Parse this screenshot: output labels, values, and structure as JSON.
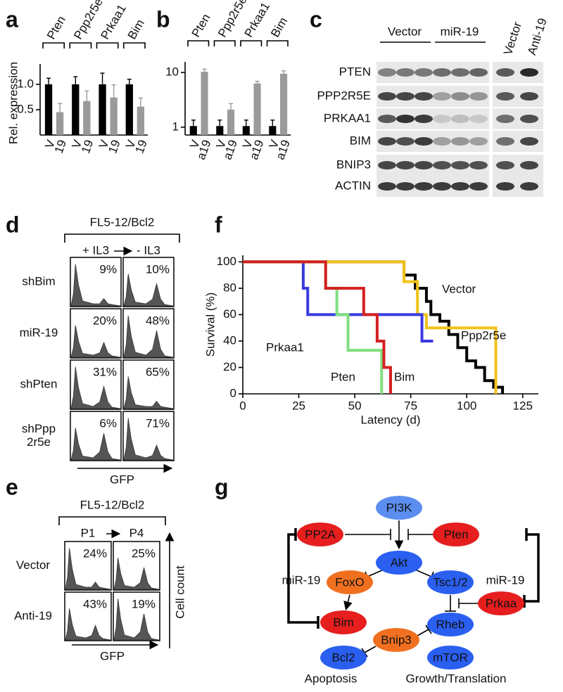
{
  "panel_labels": [
    "a",
    "b",
    "c",
    "d",
    "e",
    "f",
    "g"
  ],
  "chart_data": [
    {
      "type": "bar",
      "log": false,
      "ylabel": "Rel. expression",
      "categories": [
        "Pten",
        "Ppp2r5e",
        "Prkaa1",
        "Bim"
      ],
      "series": [
        {
          "name": "V",
          "color": "#000000",
          "values": [
            1,
            1,
            1,
            1
          ],
          "errors": [
            0.12,
            0.15,
            0.22,
            0.1
          ]
        },
        {
          "name": "19",
          "color": "#9a9a9a",
          "values": [
            0.45,
            0.67,
            0.74,
            0.56
          ],
          "errors": [
            0.17,
            0.2,
            0.25,
            0.17
          ]
        }
      ],
      "ylim": [
        0,
        1.4
      ],
      "yticks": [
        0.5,
        {
          "value": 1,
          "label": "1.0"
        }
      ]
    },
    {
      "type": "bar",
      "log": true,
      "categories": [
        "Pten",
        "Ppp2r5e",
        "Prkaa1",
        "Bim"
      ],
      "series": [
        {
          "name": "V",
          "color": "#000000",
          "values": [
            1.05,
            1.05,
            1.05,
            1.05
          ],
          "errors": [
            0.3,
            0.3,
            0.3,
            0.3
          ]
        },
        {
          "name": "a19",
          "color": "#9a9a9a",
          "values": [
            10.3,
            2.1,
            6.3,
            9.5
          ],
          "errors": [
            1.2,
            0.6,
            0.6,
            1.2
          ]
        }
      ],
      "ylim": [
        0.72,
        15.6
      ],
      "yticks": [
        1,
        10
      ]
    },
    {
      "type": "step",
      "xlabel": "Latency (d)",
      "ylabel": "Survival (%)",
      "xlim": [
        0,
        132
      ],
      "ylim": [
        0,
        105
      ],
      "xticks": [
        0,
        25,
        50,
        75,
        100,
        125
      ],
      "yticks": [
        0,
        20,
        40,
        60,
        80,
        100
      ],
      "series": [
        {
          "name": "Vector",
          "color": "#000000",
          "x": [
            0,
            72,
            77,
            82,
            84,
            88,
            92,
            96,
            100,
            104,
            108,
            112,
            116
          ],
          "values": [
            100,
            90,
            80,
            70,
            60,
            55,
            45,
            35,
            25,
            20,
            10,
            5,
            0
          ]
        },
        {
          "name": "Ppp2r5e",
          "color": "#f2c21a",
          "x": [
            0,
            72,
            78,
            82,
            113
          ],
          "values": [
            100,
            85,
            60,
            50,
            0
          ]
        },
        {
          "name": "Prkaa1",
          "color": "#3a3ae0",
          "x": [
            0,
            27,
            29,
            80,
            85
          ],
          "values": [
            100,
            80,
            60,
            40,
            40
          ]
        },
        {
          "name": "Pten",
          "color": "#7fe07f",
          "x": [
            0,
            37,
            42,
            47,
            62
          ],
          "values": [
            100,
            80,
            60,
            33,
            0
          ]
        },
        {
          "name": "Bim",
          "color": "#d42020",
          "x": [
            0,
            37,
            54,
            60,
            63,
            66
          ],
          "values": [
            100,
            80,
            60,
            40,
            20,
            0
          ]
        }
      ]
    }
  ],
  "blot": {
    "groups": [
      "Vector",
      "miR-19"
    ],
    "right_groups": [
      "Vector",
      "Anti-19"
    ],
    "rows": [
      "PTEN",
      "PPP2R5E",
      "PRKAA1",
      "BIM",
      "BNIP3",
      "ACTIN"
    ]
  },
  "flow_d": {
    "title": "FL5-12/Bcl2",
    "conditions": [
      "+ IL3",
      "- IL3"
    ],
    "axis": "GFP",
    "rows": [
      {
        "label": "shBim",
        "values": [
          "9%",
          "10%"
        ]
      },
      {
        "label": "miR-19",
        "values": [
          "20%",
          "48%"
        ]
      },
      {
        "label": "shPten",
        "values": [
          "31%",
          "65%"
        ]
      },
      {
        "label": "shPpp\n2r5e",
        "values": [
          "6%",
          "71%"
        ]
      }
    ]
  },
  "flow_e": {
    "title": "FL5-12/Bcl2",
    "conditions": [
      "P1",
      "P4"
    ],
    "axis": "GFP",
    "y_axis": "Cell count",
    "rows": [
      {
        "label": "Vector",
        "values": [
          "24%",
          "25%"
        ]
      },
      {
        "label": "Anti-19",
        "values": [
          "43%",
          "19%"
        ]
      }
    ]
  },
  "diagram": {
    "nodes": [
      {
        "label": "PI3K",
        "color": "#5b8ef0"
      },
      {
        "label": "PP2A",
        "color": "#e61e1e"
      },
      {
        "label": "Pten",
        "color": "#e61e1e"
      },
      {
        "label": "Akt",
        "color": "#2a5ff0"
      },
      {
        "label": "FoxO",
        "color": "#f07020"
      },
      {
        "label": "Tsc1/2",
        "color": "#2a5ff0"
      },
      {
        "label": "Prkaa",
        "color": "#e61e1e"
      },
      {
        "label": "Bim",
        "color": "#e61e1e"
      },
      {
        "label": "Rheb",
        "color": "#2a5ff0"
      },
      {
        "label": "Bnip3",
        "color": "#f07020"
      },
      {
        "label": "Bcl2",
        "color": "#2a5ff0"
      },
      {
        "label": "mTOR",
        "color": "#2a5ff0"
      }
    ],
    "regulators": [
      "miR-19",
      "miR-19"
    ],
    "outputs": [
      "Apoptosis",
      "Growth/Translation"
    ]
  }
}
